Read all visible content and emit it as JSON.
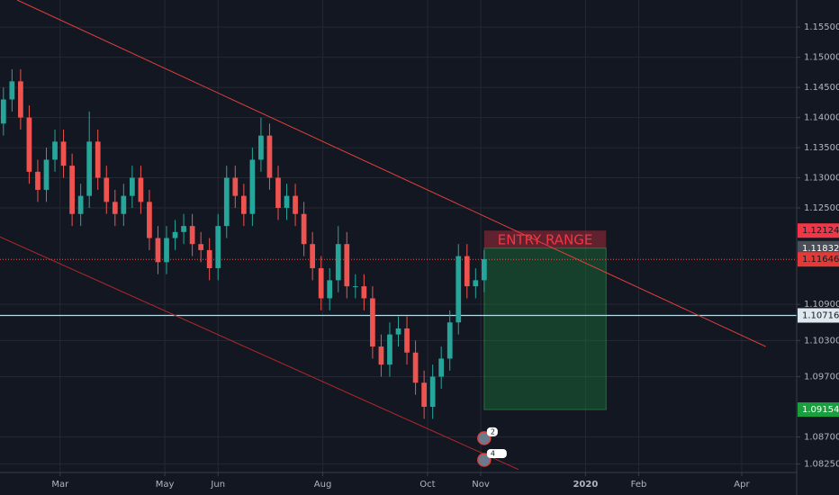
{
  "chart_data": {
    "type": "candlestick",
    "x": [
      26,
      31,
      36,
      41,
      46,
      51,
      56,
      61,
      66,
      71,
      76,
      81,
      86,
      91,
      96,
      101,
      106,
      111,
      116,
      121,
      126,
      131,
      136,
      141,
      146,
      151,
      156,
      161,
      166,
      171,
      176,
      181,
      186,
      191,
      196,
      201,
      206,
      211,
      216,
      221,
      226,
      231,
      236,
      241,
      246,
      251,
      256,
      261,
      266,
      271,
      276,
      281,
      286,
      291,
      296,
      301,
      306
    ],
    "open": [
      1.139,
      1.143,
      1.146,
      1.14,
      1.131,
      1.128,
      1.133,
      1.136,
      1.132,
      1.124,
      1.127,
      1.136,
      1.13,
      1.126,
      1.124,
      1.127,
      1.13,
      1.126,
      1.12,
      1.116,
      1.12,
      1.121,
      1.122,
      1.119,
      1.118,
      1.115,
      1.122,
      1.13,
      1.127,
      1.124,
      1.133,
      1.137,
      1.13,
      1.125,
      1.127,
      1.124,
      1.119,
      1.115,
      1.11,
      1.113,
      1.119,
      1.112,
      1.112,
      1.11,
      1.102,
      1.099,
      1.104,
      1.105,
      1.101,
      1.096,
      1.092,
      1.097,
      1.1,
      1.106,
      1.117,
      1.112,
      1.113
    ],
    "high": [
      1.145,
      1.148,
      1.148,
      1.142,
      1.133,
      1.135,
      1.138,
      1.138,
      1.134,
      1.129,
      1.141,
      1.138,
      1.132,
      1.128,
      1.129,
      1.132,
      1.132,
      1.128,
      1.122,
      1.122,
      1.123,
      1.124,
      1.124,
      1.121,
      1.12,
      1.124,
      1.132,
      1.132,
      1.129,
      1.135,
      1.14,
      1.139,
      1.132,
      1.129,
      1.129,
      1.126,
      1.121,
      1.117,
      1.115,
      1.122,
      1.121,
      1.114,
      1.114,
      1.112,
      1.104,
      1.106,
      1.107,
      1.107,
      1.103,
      1.098,
      1.099,
      1.102,
      1.108,
      1.119,
      1.119,
      1.115,
      1.118
    ],
    "low": [
      1.137,
      1.141,
      1.138,
      1.129,
      1.126,
      1.126,
      1.131,
      1.13,
      1.122,
      1.122,
      1.125,
      1.128,
      1.124,
      1.122,
      1.122,
      1.125,
      1.124,
      1.118,
      1.114,
      1.114,
      1.118,
      1.119,
      1.117,
      1.116,
      1.113,
      1.113,
      1.12,
      1.125,
      1.122,
      1.122,
      1.131,
      1.128,
      1.123,
      1.123,
      1.122,
      1.117,
      1.113,
      1.108,
      1.108,
      1.111,
      1.11,
      1.11,
      1.108,
      1.1,
      1.097,
      1.097,
      1.102,
      1.099,
      1.094,
      1.09,
      1.09,
      1.095,
      1.098,
      1.104,
      1.11,
      1.11,
      1.111
    ],
    "close": [
      1.143,
      1.146,
      1.14,
      1.131,
      1.128,
      1.133,
      1.136,
      1.132,
      1.124,
      1.127,
      1.136,
      1.13,
      1.126,
      1.124,
      1.127,
      1.13,
      1.126,
      1.12,
      1.116,
      1.12,
      1.121,
      1.122,
      1.119,
      1.118,
      1.115,
      1.122,
      1.13,
      1.127,
      1.124,
      1.133,
      1.137,
      1.13,
      1.125,
      1.127,
      1.124,
      1.119,
      1.115,
      1.11,
      1.113,
      1.119,
      1.112,
      1.112,
      1.11,
      1.102,
      1.099,
      1.104,
      1.105,
      1.101,
      1.096,
      1.092,
      1.097,
      1.1,
      1.106,
      1.117,
      1.112,
      1.113,
      1.1165
    ],
    "up_color": "#26a69a",
    "down_color": "#ef5350",
    "xlim": [
      24,
      488
    ],
    "ylim": [
      1.0811,
      1.1595
    ],
    "xticks": [
      {
        "value": 59,
        "label": "Mar"
      },
      {
        "value": 120,
        "label": "May"
      },
      {
        "value": 151,
        "label": "Jun"
      },
      {
        "value": 212,
        "label": "Aug"
      },
      {
        "value": 273,
        "label": "Oct"
      },
      {
        "value": 304,
        "label": "Nov"
      },
      {
        "value": 365,
        "label": "2020"
      },
      {
        "value": 396,
        "label": "Feb"
      },
      {
        "value": 456,
        "label": "Apr"
      }
    ],
    "yticks": [
      {
        "value": 1.155,
        "label": "1.15500"
      },
      {
        "value": 1.15,
        "label": "1.15000"
      },
      {
        "value": 1.145,
        "label": "1.14500"
      },
      {
        "value": 1.14,
        "label": "1.14000"
      },
      {
        "value": 1.135,
        "label": "1.13500"
      },
      {
        "value": 1.13,
        "label": "1.13000"
      },
      {
        "value": 1.125,
        "label": "1.12500"
      },
      {
        "value": 1.109,
        "label": "1.10900"
      },
      {
        "value": 1.103,
        "label": "1.10300"
      },
      {
        "value": 1.097,
        "label": "1.09700"
      },
      {
        "value": 1.087,
        "label": "1.08700"
      },
      {
        "value": 1.0825,
        "label": "1.08250"
      }
    ],
    "grid": true,
    "price_labels": [
      {
        "value": 1.12124,
        "label": "1.12124",
        "color": "#f23645"
      },
      {
        "value": 1.11832,
        "label": "1.11832",
        "color": "#4a4e59"
      },
      {
        "value": 1.11646,
        "label": "1.11646",
        "color": "#e53935"
      },
      {
        "value": 1.10716,
        "label": "1.10716",
        "color": "#dfe8ee"
      },
      {
        "value": 1.09154,
        "label": "1.09154",
        "color": "#1b9e3e"
      }
    ],
    "horizontal_line": {
      "value": 1.10716,
      "color": "#b8dbe8"
    },
    "trend_lines": [
      {
        "x": [
          34,
          470
        ],
        "y": [
          1.1595,
          1.102
        ],
        "color": "#e0403c"
      },
      {
        "x": [
          24,
          326
        ],
        "y": [
          1.1202,
          1.0816
        ],
        "color": "#b0282a"
      }
    ],
    "position": {
      "x": [
        306,
        377
      ],
      "stop": 1.12124,
      "entry": 1.11832,
      "target": 1.09154,
      "last": 1.11646,
      "text": "ENTRY RANGE"
    },
    "events": [
      {
        "x": 306,
        "y": 1.0868,
        "label": "2"
      },
      {
        "x": 306,
        "y": 1.0832,
        "label": "4"
      }
    ]
  }
}
